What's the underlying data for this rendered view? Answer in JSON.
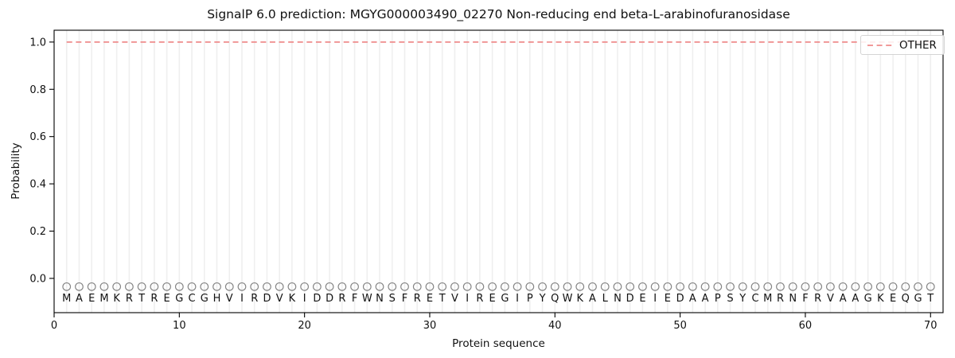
{
  "chart_data": {
    "type": "line",
    "title": "SignalP 6.0 prediction: MGYG000003490_02270 Non-reducing end beta-L-arabinofuranosidase",
    "xlabel": "Protein sequence",
    "ylabel": "Probability",
    "xlim": [
      0,
      71
    ],
    "ylim": [
      -0.145,
      1.05
    ],
    "xticks": [
      0,
      10,
      20,
      30,
      40,
      50,
      60,
      70
    ],
    "yticks": [
      0.0,
      0.2,
      0.4,
      0.6,
      0.8,
      1.0
    ],
    "ytick_labels": [
      "0.0",
      "0.2",
      "0.4",
      "0.6",
      "0.8",
      "1.0"
    ],
    "grid": {
      "vertical_gridline_per_residue": true,
      "horizontal": false
    },
    "legend": {
      "position": "upper right",
      "entries": [
        {
          "label": "OTHER",
          "color": "#ef8b8b",
          "linestyle": "dashed"
        }
      ]
    },
    "series": [
      {
        "name": "OTHER",
        "color": "#ef8b8b",
        "linestyle": "dashed",
        "x": [
          1,
          2,
          3,
          4,
          5,
          6,
          7,
          8,
          9,
          10,
          11,
          12,
          13,
          14,
          15,
          16,
          17,
          18,
          19,
          20,
          21,
          22,
          23,
          24,
          25,
          26,
          27,
          28,
          29,
          30,
          31,
          32,
          33,
          34,
          35,
          36,
          37,
          38,
          39,
          40,
          41,
          42,
          43,
          44,
          45,
          46,
          47,
          48,
          49,
          50,
          51,
          52,
          53,
          54,
          55,
          56,
          57,
          58,
          59,
          60,
          61,
          62,
          63,
          64,
          65,
          66,
          67,
          68,
          69,
          70
        ],
        "values": [
          1.0,
          1.0,
          1.0,
          1.0,
          1.0,
          1.0,
          1.0,
          1.0,
          1.0,
          1.0,
          1.0,
          1.0,
          1.0,
          1.0,
          1.0,
          1.0,
          1.0,
          1.0,
          1.0,
          1.0,
          1.0,
          1.0,
          1.0,
          1.0,
          1.0,
          1.0,
          1.0,
          1.0,
          1.0,
          1.0,
          1.0,
          1.0,
          1.0,
          1.0,
          1.0,
          1.0,
          1.0,
          1.0,
          1.0,
          1.0,
          1.0,
          1.0,
          1.0,
          1.0,
          1.0,
          1.0,
          1.0,
          1.0,
          1.0,
          1.0,
          1.0,
          1.0,
          1.0,
          1.0,
          1.0,
          1.0,
          1.0,
          1.0,
          1.0,
          1.0,
          1.0,
          1.0,
          1.0,
          1.0,
          1.0,
          1.0,
          1.0,
          1.0,
          1.0,
          1.0
        ]
      }
    ],
    "sequence": {
      "residues": "MAEMKRTREGCGHVIRDVKIDDRFWNSFRETVIREGIPYQWKALNDEIEDAAPSYCMRNFRVAAGKEQGT",
      "first_position": 1,
      "marker": {
        "shape": "open-circle",
        "y": -0.035
      }
    }
  },
  "colors": {
    "background": "#ffffff",
    "frame": "#000000",
    "gridline": "#efefef",
    "other_line": "#ef8b8b",
    "marker": "#858585",
    "text": "#111111",
    "legend_border": "#d4d4d4"
  }
}
